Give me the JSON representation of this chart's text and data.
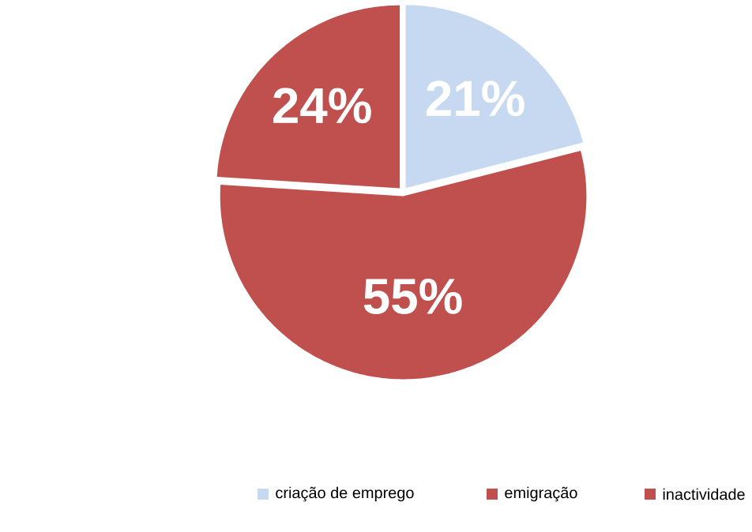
{
  "chart_data": {
    "type": "pie",
    "categories": [
      "criação de emprego",
      "emigração",
      "inactividade"
    ],
    "values": [
      21,
      55,
      24
    ],
    "colors": [
      "#c6d9f1",
      "#c0504d",
      "#c0504d"
    ],
    "value_labels": [
      "21%",
      "55%",
      "24%"
    ],
    "legend": "bottom"
  }
}
